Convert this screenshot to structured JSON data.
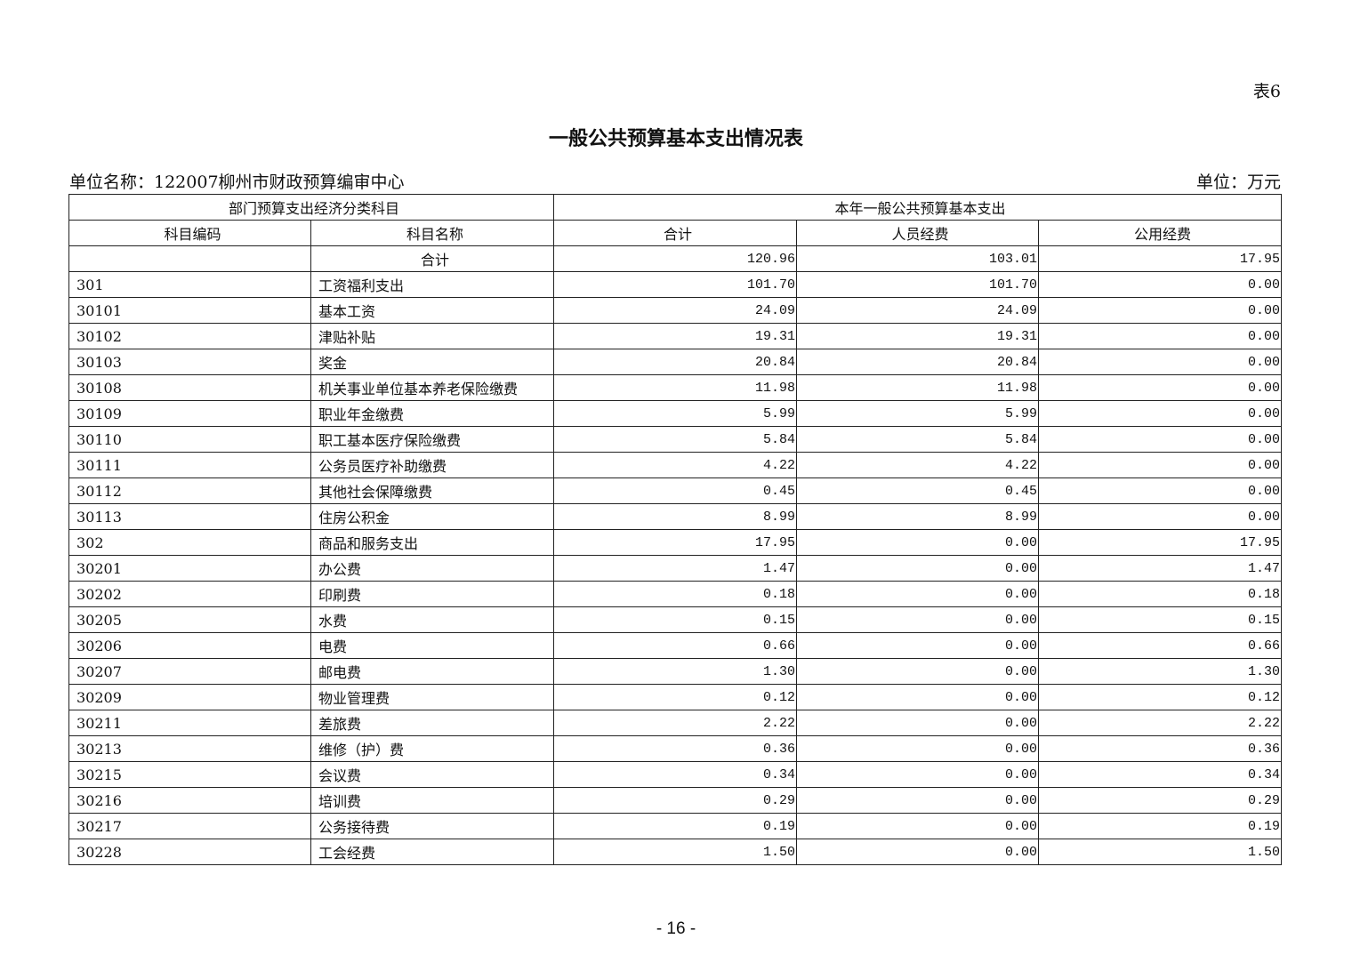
{
  "table_no": "表6",
  "title": "一般公共预算基本支出情况表",
  "unit_name": "单位名称：122007柳州市财政预算编审中心",
  "unit": "单位：万元",
  "headers": {
    "group_left": "部门预算支出经济分类科目",
    "group_right": "本年一般公共预算基本支出",
    "code": "科目编码",
    "name": "科目名称",
    "total": "合计",
    "personnel": "人员经费",
    "public": "公用经费"
  },
  "rows": [
    {
      "code": "",
      "name": "合计",
      "total": "120.96",
      "personnel": "103.01",
      "public": "17.95"
    },
    {
      "code": "301",
      "name": "工资福利支出",
      "total": "101.70",
      "personnel": "101.70",
      "public": "0.00"
    },
    {
      "code": "30101",
      "name": "基本工资",
      "total": "24.09",
      "personnel": "24.09",
      "public": "0.00"
    },
    {
      "code": "30102",
      "name": "津贴补贴",
      "total": "19.31",
      "personnel": "19.31",
      "public": "0.00"
    },
    {
      "code": "30103",
      "name": "奖金",
      "total": "20.84",
      "personnel": "20.84",
      "public": "0.00"
    },
    {
      "code": "30108",
      "name": "机关事业单位基本养老保险缴费",
      "total": "11.98",
      "personnel": "11.98",
      "public": "0.00"
    },
    {
      "code": "30109",
      "name": "职业年金缴费",
      "total": "5.99",
      "personnel": "5.99",
      "public": "0.00"
    },
    {
      "code": "30110",
      "name": "职工基本医疗保险缴费",
      "total": "5.84",
      "personnel": "5.84",
      "public": "0.00"
    },
    {
      "code": "30111",
      "name": "公务员医疗补助缴费",
      "total": "4.22",
      "personnel": "4.22",
      "public": "0.00"
    },
    {
      "code": "30112",
      "name": "其他社会保障缴费",
      "total": "0.45",
      "personnel": "0.45",
      "public": "0.00"
    },
    {
      "code": "30113",
      "name": "住房公积金",
      "total": "8.99",
      "personnel": "8.99",
      "public": "0.00"
    },
    {
      "code": "302",
      "name": "商品和服务支出",
      "total": "17.95",
      "personnel": "0.00",
      "public": "17.95"
    },
    {
      "code": "30201",
      "name": "办公费",
      "total": "1.47",
      "personnel": "0.00",
      "public": "1.47"
    },
    {
      "code": "30202",
      "name": "印刷费",
      "total": "0.18",
      "personnel": "0.00",
      "public": "0.18"
    },
    {
      "code": "30205",
      "name": "水费",
      "total": "0.15",
      "personnel": "0.00",
      "public": "0.15"
    },
    {
      "code": "30206",
      "name": "电费",
      "total": "0.66",
      "personnel": "0.00",
      "public": "0.66"
    },
    {
      "code": "30207",
      "name": "邮电费",
      "total": "1.30",
      "personnel": "0.00",
      "public": "1.30"
    },
    {
      "code": "30209",
      "name": "物业管理费",
      "total": "0.12",
      "personnel": "0.00",
      "public": "0.12"
    },
    {
      "code": "30211",
      "name": "差旅费",
      "total": "2.22",
      "personnel": "0.00",
      "public": "2.22"
    },
    {
      "code": "30213",
      "name": "维修（护）费",
      "total": "0.36",
      "personnel": "0.00",
      "public": "0.36"
    },
    {
      "code": "30215",
      "name": "会议费",
      "total": "0.34",
      "personnel": "0.00",
      "public": "0.34"
    },
    {
      "code": "30216",
      "name": "培训费",
      "total": "0.29",
      "personnel": "0.00",
      "public": "0.29"
    },
    {
      "code": "30217",
      "name": "公务接待费",
      "total": "0.19",
      "personnel": "0.00",
      "public": "0.19"
    },
    {
      "code": "30228",
      "name": "工会经费",
      "total": "1.50",
      "personnel": "0.00",
      "public": "1.50"
    }
  ],
  "page_number": "- 16 -"
}
